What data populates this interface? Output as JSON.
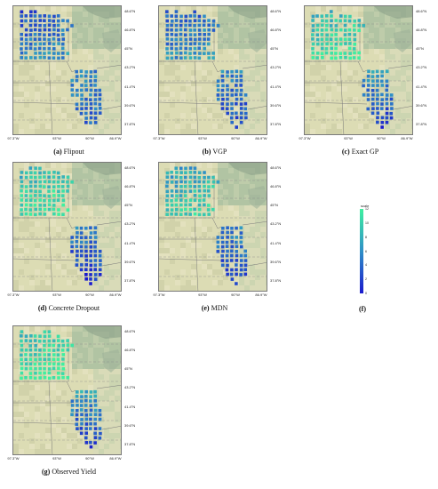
{
  "latitude_labels": [
    "48.6°N",
    "46.8°N",
    "45°N",
    "43.2°N",
    "41.4°N",
    "39.6°N",
    "37.8°N"
  ],
  "longitude_labels": [
    "97.3°W",
    "93°W",
    "90°W",
    "86.9°W"
  ],
  "colorbar": {
    "title": "scale",
    "ticks": [
      "12",
      "10",
      "8",
      "6",
      "4",
      "2",
      "0"
    ],
    "range": [
      0,
      12
    ],
    "color_low": "#1a1acd",
    "color_mid": "#2f8fc7",
    "color_high": "#3ff0a0"
  },
  "panels": [
    {
      "id": "a",
      "letter": "(a)",
      "caption": "Flipout",
      "mn_level": 0.35,
      "il_north_level": 0.45,
      "il_south_level": 0.3
    },
    {
      "id": "b",
      "letter": "(b)",
      "caption": "VGP",
      "mn_level": 0.4,
      "il_north_level": 0.45,
      "il_south_level": 0.2
    },
    {
      "id": "c",
      "letter": "(c)",
      "caption": "Exact GP",
      "mn_level": 0.8,
      "il_north_level": 0.55,
      "il_south_level": 0.1
    },
    {
      "id": "d",
      "letter": "(d)",
      "caption": "Concrete Dropout",
      "mn_level": 0.8,
      "il_north_level": 0.45,
      "il_south_level": 0.08
    },
    {
      "id": "e",
      "letter": "(e)",
      "caption": "MDN",
      "mn_level": 0.7,
      "il_north_level": 0.45,
      "il_south_level": 0.1
    },
    {
      "id": "g",
      "letter": "(g)",
      "caption": "Observed Yield",
      "mn_level": 0.85,
      "il_north_level": 0.6,
      "il_south_level": 0.1
    }
  ],
  "colorbar_panel": {
    "letter": "(f)"
  }
}
